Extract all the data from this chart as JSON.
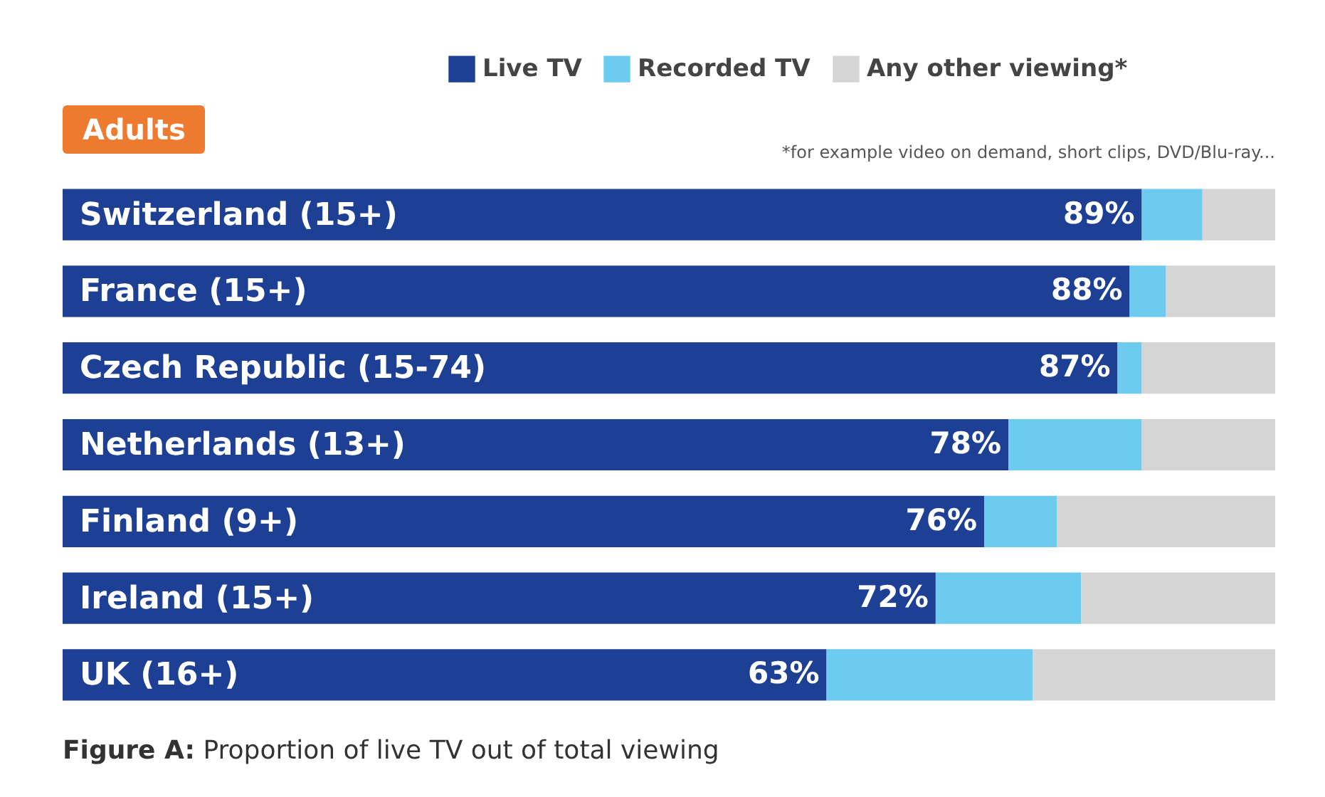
{
  "chart_data": {
    "type": "bar",
    "orientation": "horizontal",
    "stacked": true,
    "title": "Adults",
    "categories": [
      "Switzerland (15+)",
      "France (15+)",
      "Czech Republic (15-74)",
      "Netherlands (13+)",
      "Finland (9+)",
      "Ireland (15+)",
      "UK (16+)"
    ],
    "series": [
      {
        "name": "Live TV",
        "color": "#1d3f94",
        "values": [
          89,
          88,
          87,
          78,
          76,
          72,
          63
        ],
        "value_labels": [
          "89%",
          "88%",
          "87%",
          "78%",
          "76%",
          "72%",
          "63%"
        ]
      },
      {
        "name": "Recorded TV",
        "color": "#6ccbee",
        "values": [
          5,
          3,
          2,
          11,
          6,
          12,
          17
        ]
      },
      {
        "name": "Any other viewing*",
        "color": "#d5d5d5",
        "values": [
          6,
          9,
          11,
          11,
          18,
          16,
          20
        ]
      }
    ],
    "xlim": [
      0,
      100
    ],
    "legend": "top right",
    "annotations": [
      "*for example video on demand, short clips, DVD/Blu-ray...",
      "Figure A: Proportion of live TV out of total viewing"
    ]
  }
}
